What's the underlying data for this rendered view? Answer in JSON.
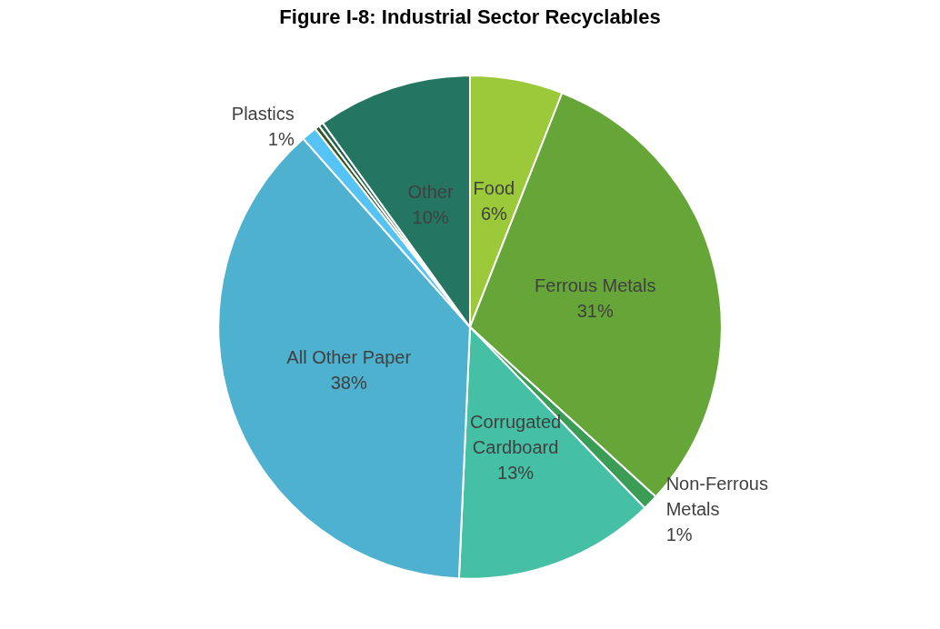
{
  "chart_data": {
    "type": "pie",
    "title": "Figure I-8: Industrial Sector Recyclables",
    "categories": [
      "Food",
      "Ferrous Metals",
      "Non-Ferrous Metals",
      "Corrugated Cardboard",
      "All Other Paper",
      "Plastics",
      null,
      null,
      "Other"
    ],
    "values": [
      6,
      31,
      1,
      13,
      38,
      1,
      0.3,
      0.3,
      10
    ],
    "value_labels": [
      "6%",
      "31%",
      "1%",
      "13%",
      "38%",
      "1%",
      null,
      null,
      "10%"
    ],
    "colors": [
      "#9bc93a",
      "#66a638",
      "#3a9c55",
      "#45c0a4",
      "#4eb1d0",
      "#55c4f5",
      "#375623",
      "#1e6650",
      "#247562"
    ],
    "legend": false
  }
}
